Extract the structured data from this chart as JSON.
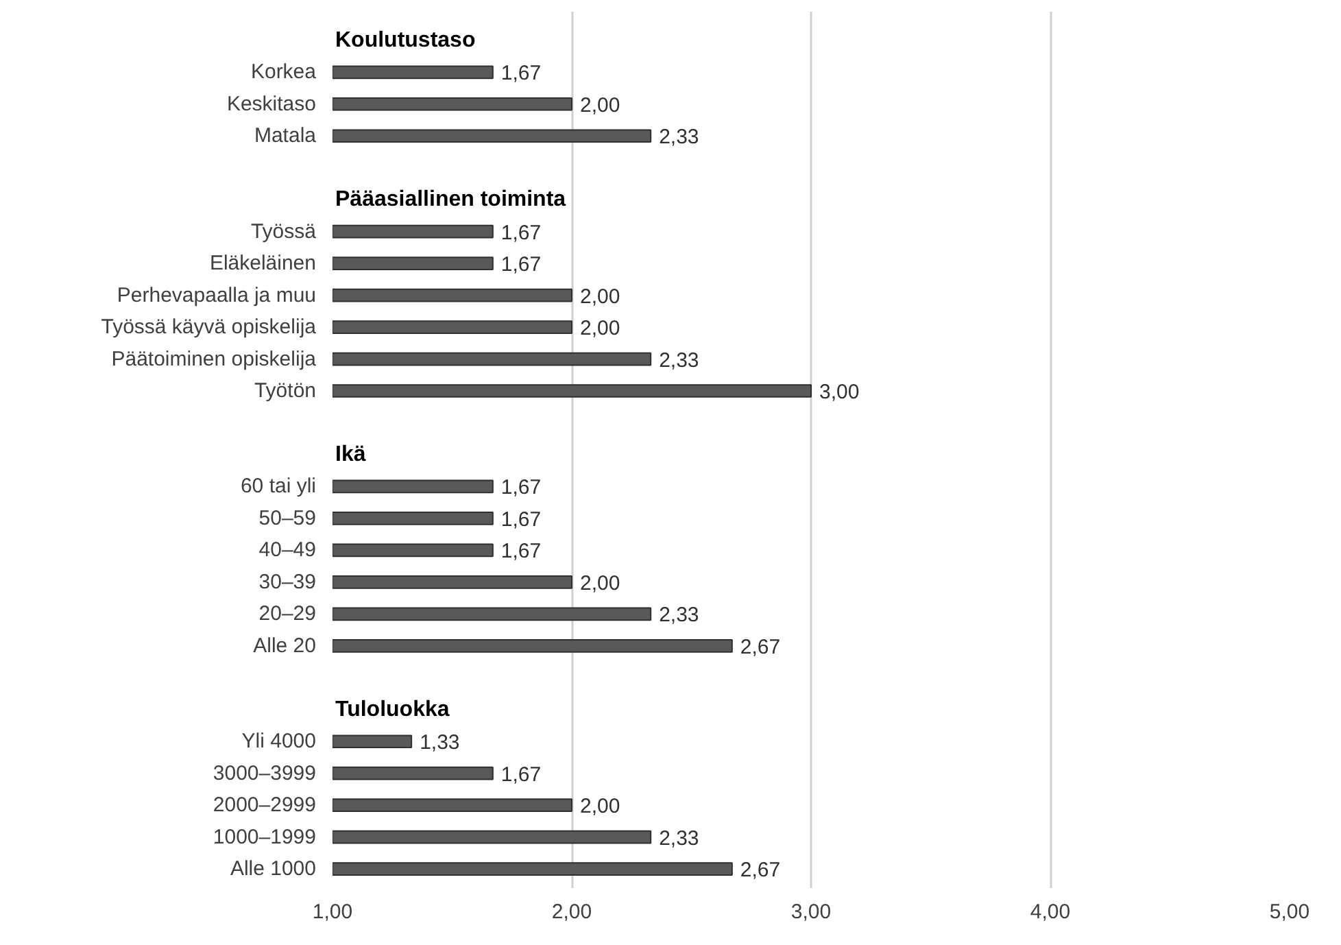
{
  "chart_data": {
    "type": "bar",
    "orientation": "horizontal",
    "categories": [
      "Koulutustaso",
      "Korkea",
      "Keskitaso",
      "Matala",
      null,
      "Pääasiallinen toiminta",
      "Työssä",
      "Eläkeläinen",
      "Perhevapaalla ja muu",
      "Työssä käyvä opiskelija",
      "Päätoiminen opiskelija",
      "Työtön",
      null,
      "Ikä",
      "60 tai yli",
      "50–59",
      "40–49",
      "30–39",
      "20–29",
      "Alle 20",
      null,
      "Tuloluokka",
      "Yli 4000",
      "3000–3999",
      "2000–2999",
      "1000–1999",
      "Alle 1000"
    ],
    "values": [
      null,
      1.67,
      2.0,
      2.33,
      null,
      null,
      1.67,
      1.67,
      2.0,
      2.0,
      2.33,
      3.0,
      null,
      null,
      1.67,
      1.67,
      1.67,
      2.0,
      2.33,
      2.67,
      null,
      null,
      1.33,
      1.67,
      2.0,
      2.33,
      2.67
    ],
    "value_labels": [
      null,
      "1,67",
      "2,00",
      "2,33",
      null,
      null,
      "1,67",
      "1,67",
      "2,00",
      "2,00",
      "2,33",
      "3,00",
      null,
      null,
      "1,67",
      "1,67",
      "1,67",
      "2,00",
      "2,33",
      "2,67",
      null,
      null,
      "1,33",
      "1,67",
      "2,00",
      "2,33",
      "2,67"
    ],
    "color": "#595959",
    "xlim": [
      1,
      5
    ],
    "xticks": [
      {
        "value": 1,
        "label": "1,00"
      },
      {
        "value": 2,
        "label": "2,00"
      },
      {
        "value": 3,
        "label": "3,00"
      },
      {
        "value": 4,
        "label": "4,00"
      },
      {
        "value": 5,
        "label": "5,00"
      }
    ],
    "grid": "x"
  }
}
